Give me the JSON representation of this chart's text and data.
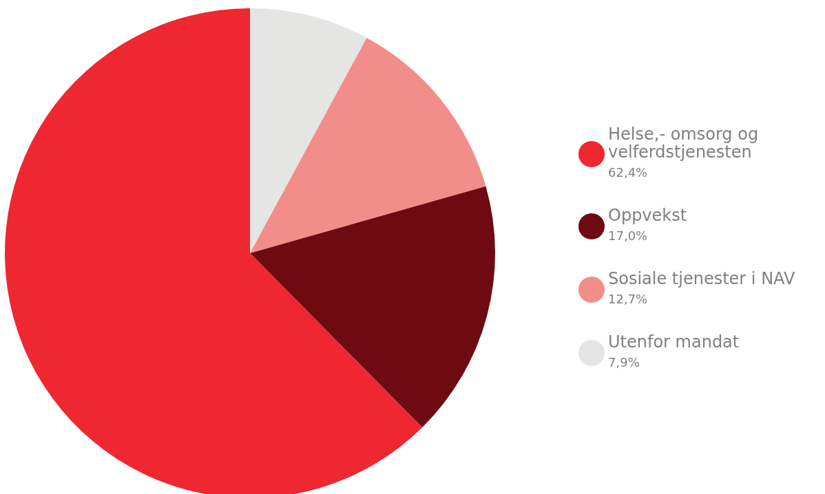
{
  "chart_data": {
    "type": "pie",
    "categories": [
      "Helse,- omsorg og velferdstjenesten",
      "Oppvekst",
      "Sosiale tjenester i NAV",
      "Utenfor mandat"
    ],
    "values": [
      62.4,
      17.0,
      12.7,
      7.9
    ],
    "value_labels": [
      "62,4%",
      "17,0%",
      "12,7%",
      "7,9%"
    ],
    "colors": [
      "#ee2730",
      "#6e0b12",
      "#f28e8a",
      "#e5e6e3"
    ],
    "legend": "right"
  }
}
